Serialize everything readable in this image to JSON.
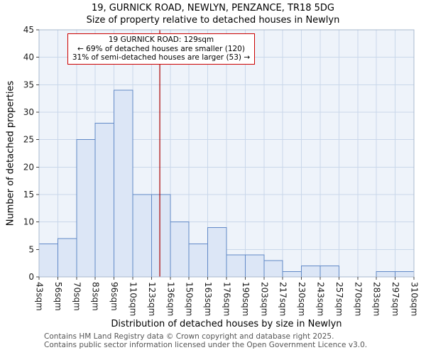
{
  "colors": {
    "bar_fill": "#dce6f6",
    "bar_stroke": "#6189c7",
    "grid": "#c9d7ea",
    "plot_bg": "#eef3fa",
    "plot_border": "#a8b8cf",
    "marker_line": "#aa0000",
    "annotation_border": "#cc0000",
    "tick_text": "#1a1a1a",
    "footer_text": "#555555"
  },
  "chart_data": {
    "type": "bar",
    "title": "19, GURNICK ROAD, NEWLYN, PENZANCE, TR18 5DG",
    "subtitle": "Size of property relative to detached houses in Newlyn",
    "xlabel": "Distribution of detached houses by size in Newlyn",
    "ylabel": "Number of detached properties",
    "categories": [
      "43sqm",
      "56sqm",
      "70sqm",
      "83sqm",
      "96sqm",
      "110sqm",
      "123sqm",
      "136sqm",
      "150sqm",
      "163sqm",
      "176sqm",
      "190sqm",
      "203sqm",
      "217sqm",
      "230sqm",
      "243sqm",
      "257sqm",
      "270sqm",
      "283sqm",
      "297sqm",
      "310sqm"
    ],
    "bin_edges": [
      43,
      56,
      70,
      83,
      96,
      110,
      123,
      136,
      150,
      163,
      176,
      190,
      203,
      217,
      230,
      243,
      257,
      270,
      283,
      297,
      310
    ],
    "values": [
      6,
      7,
      25,
      28,
      34,
      15,
      15,
      10,
      6,
      9,
      4,
      4,
      3,
      1,
      2,
      2,
      0,
      0,
      1,
      1
    ],
    "ylim": [
      0,
      45
    ],
    "ytick_step": 5,
    "x_range": [
      43,
      310
    ],
    "grid": true,
    "legend": false,
    "marker": {
      "value": 129,
      "label": "19 GURNICK ROAD: 129sqm"
    },
    "annotation": {
      "line1": "19 GURNICK ROAD: 129sqm",
      "line2": "← 69% of detached houses are smaller (120)",
      "line3": "31% of semi-detached houses are larger (53) →"
    }
  },
  "footer": {
    "line1": "Contains HM Land Registry data © Crown copyright and database right 2025.",
    "line2": "Contains public sector information licensed under the Open Government Licence v3.0."
  }
}
